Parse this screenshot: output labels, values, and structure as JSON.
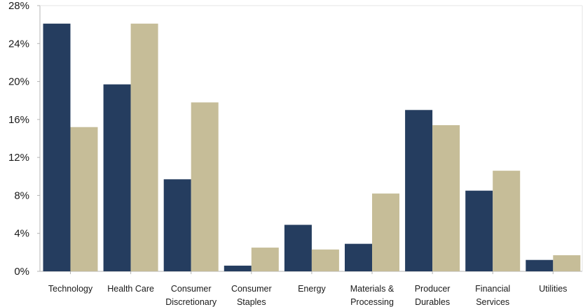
{
  "chart_data": {
    "type": "bar",
    "title": "",
    "xlabel": "",
    "ylabel": "",
    "ylim": [
      0,
      28
    ],
    "yticks": [
      "0%",
      "4%",
      "8%",
      "12%",
      "16%",
      "20%",
      "24%",
      "28%"
    ],
    "ytick_values": [
      0,
      4,
      8,
      12,
      16,
      20,
      24,
      28
    ],
    "grid": false,
    "legend": "none",
    "categories": [
      [
        "Technology"
      ],
      [
        "Health Care"
      ],
      [
        "Consumer",
        "Discretionary"
      ],
      [
        "Consumer",
        "Staples"
      ],
      [
        "Energy"
      ],
      [
        "Materials &",
        "Processing"
      ],
      [
        "Producer",
        "Durables"
      ],
      [
        "Financial",
        "Services"
      ],
      [
        "Utilities"
      ]
    ],
    "series": [
      {
        "color": "#253d5f",
        "values": [
          26.1,
          19.7,
          9.7,
          0.6,
          4.9,
          2.9,
          17.0,
          8.5,
          1.2
        ]
      },
      {
        "color": "#c6bd98",
        "values": [
          15.2,
          26.1,
          17.8,
          2.5,
          2.3,
          8.2,
          15.4,
          10.6,
          1.7
        ]
      }
    ],
    "axis_color": "#b5b5b5"
  }
}
